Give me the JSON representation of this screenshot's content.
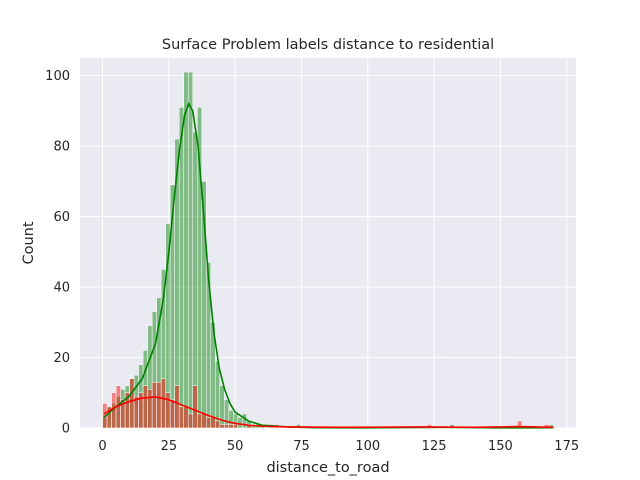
{
  "chart_data": {
    "type": "histogram",
    "title": "Surface Problem labels distance to residential",
    "xlabel": "distance_to_road",
    "ylabel": "Count",
    "xlim": [
      -8.5,
      178.5
    ],
    "ylim": [
      0,
      105
    ],
    "xticks": [
      0,
      25,
      50,
      75,
      100,
      125,
      150,
      175
    ],
    "yticks": [
      0,
      20,
      40,
      60,
      80,
      100
    ],
    "grid": true,
    "style": "seaborn-darkgrid",
    "bin_width": 1.7,
    "series": [
      {
        "color": "#008000",
        "bins": [
          [
            0.0,
            3
          ],
          [
            1.7,
            6
          ],
          [
            3.4,
            7
          ],
          [
            5.1,
            9
          ],
          [
            6.8,
            11
          ],
          [
            8.5,
            12
          ],
          [
            10.2,
            14
          ],
          [
            11.9,
            15
          ],
          [
            13.6,
            18
          ],
          [
            15.3,
            22
          ],
          [
            17.0,
            29
          ],
          [
            18.7,
            33
          ],
          [
            20.4,
            37
          ],
          [
            22.1,
            45
          ],
          [
            23.8,
            58
          ],
          [
            25.5,
            69
          ],
          [
            27.2,
            82
          ],
          [
            28.9,
            91
          ],
          [
            30.6,
            101
          ],
          [
            32.3,
            101
          ],
          [
            34.0,
            84
          ],
          [
            35.7,
            91
          ],
          [
            37.4,
            70
          ],
          [
            39.1,
            47
          ],
          [
            40.8,
            30
          ],
          [
            42.5,
            19
          ],
          [
            44.2,
            12
          ],
          [
            45.9,
            8
          ],
          [
            47.6,
            5
          ],
          [
            49.3,
            4
          ],
          [
            51.0,
            3
          ],
          [
            52.7,
            4
          ],
          [
            54.4,
            2
          ],
          [
            56.1,
            1
          ],
          [
            57.8,
            1
          ],
          [
            59.5,
            1
          ],
          [
            62.9,
            1
          ],
          [
            73.1,
            1
          ],
          [
            130.9,
            1
          ],
          [
            168.3,
            1
          ]
        ],
        "kde": [
          [
            0.5,
            3
          ],
          [
            5,
            6
          ],
          [
            10,
            9
          ],
          [
            15,
            14
          ],
          [
            20,
            24
          ],
          [
            23,
            37
          ],
          [
            25,
            50
          ],
          [
            27,
            65
          ],
          [
            29,
            79
          ],
          [
            31,
            89
          ],
          [
            32.5,
            92
          ],
          [
            34,
            90
          ],
          [
            36,
            80
          ],
          [
            38,
            62
          ],
          [
            40,
            42
          ],
          [
            42,
            27
          ],
          [
            44,
            17
          ],
          [
            46,
            11
          ],
          [
            48,
            7
          ],
          [
            50,
            4.5
          ],
          [
            55,
            2
          ],
          [
            60,
            0.8
          ],
          [
            70,
            0.3
          ],
          [
            80,
            0.1
          ],
          [
            100,
            0.05
          ],
          [
            130,
            0.2
          ],
          [
            150,
            0.05
          ],
          [
            170,
            0.1
          ]
        ]
      },
      {
        "color": "#ff0000",
        "bins": [
          [
            0.0,
            7
          ],
          [
            1.7,
            6
          ],
          [
            3.4,
            10
          ],
          [
            5.1,
            12
          ],
          [
            6.8,
            8
          ],
          [
            8.5,
            10
          ],
          [
            10.2,
            14
          ],
          [
            11.9,
            9
          ],
          [
            13.6,
            10
          ],
          [
            15.3,
            12
          ],
          [
            17.0,
            11
          ],
          [
            18.7,
            13
          ],
          [
            20.4,
            13
          ],
          [
            22.1,
            14
          ],
          [
            23.8,
            10
          ],
          [
            25.5,
            8
          ],
          [
            27.2,
            12
          ],
          [
            28.9,
            6
          ],
          [
            30.6,
            6
          ],
          [
            32.3,
            4
          ],
          [
            34.0,
            12
          ],
          [
            35.7,
            4
          ],
          [
            37.4,
            4
          ],
          [
            39.1,
            3
          ],
          [
            40.8,
            3
          ],
          [
            42.5,
            2
          ],
          [
            44.2,
            1
          ],
          [
            45.9,
            1
          ],
          [
            47.6,
            1
          ],
          [
            49.3,
            1
          ],
          [
            54.4,
            1
          ],
          [
            64.6,
            1
          ],
          [
            122.4,
            1
          ],
          [
            156.4,
            2
          ],
          [
            166.6,
            1
          ]
        ],
        "kde": [
          [
            0.5,
            4
          ],
          [
            5,
            6
          ],
          [
            10,
            7.5
          ],
          [
            15,
            8.5
          ],
          [
            20,
            8.8
          ],
          [
            25,
            8
          ],
          [
            30,
            6.5
          ],
          [
            35,
            5
          ],
          [
            40,
            3.5
          ],
          [
            45,
            2.2
          ],
          [
            50,
            1.3
          ],
          [
            55,
            0.8
          ],
          [
            60,
            0.5
          ],
          [
            70,
            0.3
          ],
          [
            90,
            0.2
          ],
          [
            120,
            0.3
          ],
          [
            140,
            0.2
          ],
          [
            157,
            0.4
          ],
          [
            170,
            0.2
          ]
        ]
      }
    ]
  }
}
